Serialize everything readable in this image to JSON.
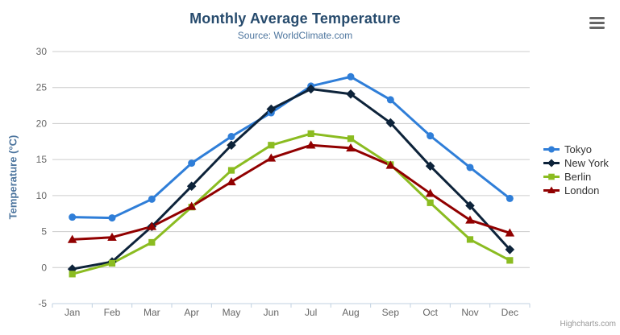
{
  "header": {
    "title": "Monthly Average Temperature",
    "subtitle": "Source: WorldClimate.com"
  },
  "credits": "Highcharts.com",
  "menu": {
    "icon": "hamburger-menu-icon",
    "tooltip": "Chart context menu"
  },
  "style_colors": {
    "title": "#274b6d",
    "subtitle": "#4d759e",
    "axis_label": "#666666",
    "gridline": "#cccccc",
    "axis_line": "#c0d0e0",
    "legend_text": "#333333"
  },
  "chart_data": {
    "type": "line",
    "title": "Monthly Average Temperature",
    "subtitle": "Source: WorldClimate.com",
    "xlabel": "",
    "ylabel": "Temperature (°C)",
    "ylim": [
      -5,
      30
    ],
    "yticks": [
      -5,
      0,
      5,
      10,
      15,
      20,
      25,
      30
    ],
    "grid": true,
    "legend_position": "right",
    "categories": [
      "Jan",
      "Feb",
      "Mar",
      "Apr",
      "May",
      "Jun",
      "Jul",
      "Aug",
      "Sep",
      "Oct",
      "Nov",
      "Dec"
    ],
    "series": [
      {
        "name": "Tokyo",
        "color": "#2f7ed8",
        "marker": "circle",
        "values": [
          7.0,
          6.9,
          9.5,
          14.5,
          18.2,
          21.5,
          25.2,
          26.5,
          23.3,
          18.3,
          13.9,
          9.6
        ]
      },
      {
        "name": "New York",
        "color": "#0d233a",
        "marker": "diamond",
        "values": [
          -0.2,
          0.8,
          5.7,
          11.3,
          17.0,
          22.0,
          24.8,
          24.1,
          20.1,
          14.1,
          8.6,
          2.5
        ]
      },
      {
        "name": "Berlin",
        "color": "#8bbc21",
        "marker": "square",
        "values": [
          -0.9,
          0.6,
          3.5,
          8.4,
          13.5,
          17.0,
          18.6,
          17.9,
          14.3,
          9.0,
          3.9,
          1.0
        ]
      },
      {
        "name": "London",
        "color": "#910000",
        "marker": "triangle",
        "values": [
          3.9,
          4.2,
          5.7,
          8.5,
          11.9,
          15.2,
          17.0,
          16.6,
          14.2,
          10.3,
          6.6,
          4.8
        ]
      }
    ]
  }
}
